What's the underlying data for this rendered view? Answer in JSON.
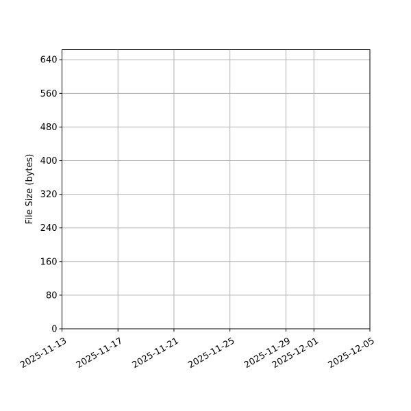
{
  "chart_data": {
    "type": "scatter",
    "title": "",
    "xlabel": "",
    "ylabel": "File Size (bytes)",
    "x_ticks": [
      "2025-11-13",
      "2025-11-17",
      "2025-11-21",
      "2025-11-25",
      "2025-11-29",
      "2025-12-01",
      "2025-12-05"
    ],
    "y_ticks": [
      0,
      80,
      160,
      240,
      320,
      400,
      480,
      560,
      640
    ],
    "xlim": [
      "2025-11-13",
      "2025-12-05"
    ],
    "ylim": [
      0,
      664
    ],
    "grid": true,
    "series": [],
    "colors": {
      "grid": "#b0b0b0",
      "axes": "#000000"
    }
  }
}
